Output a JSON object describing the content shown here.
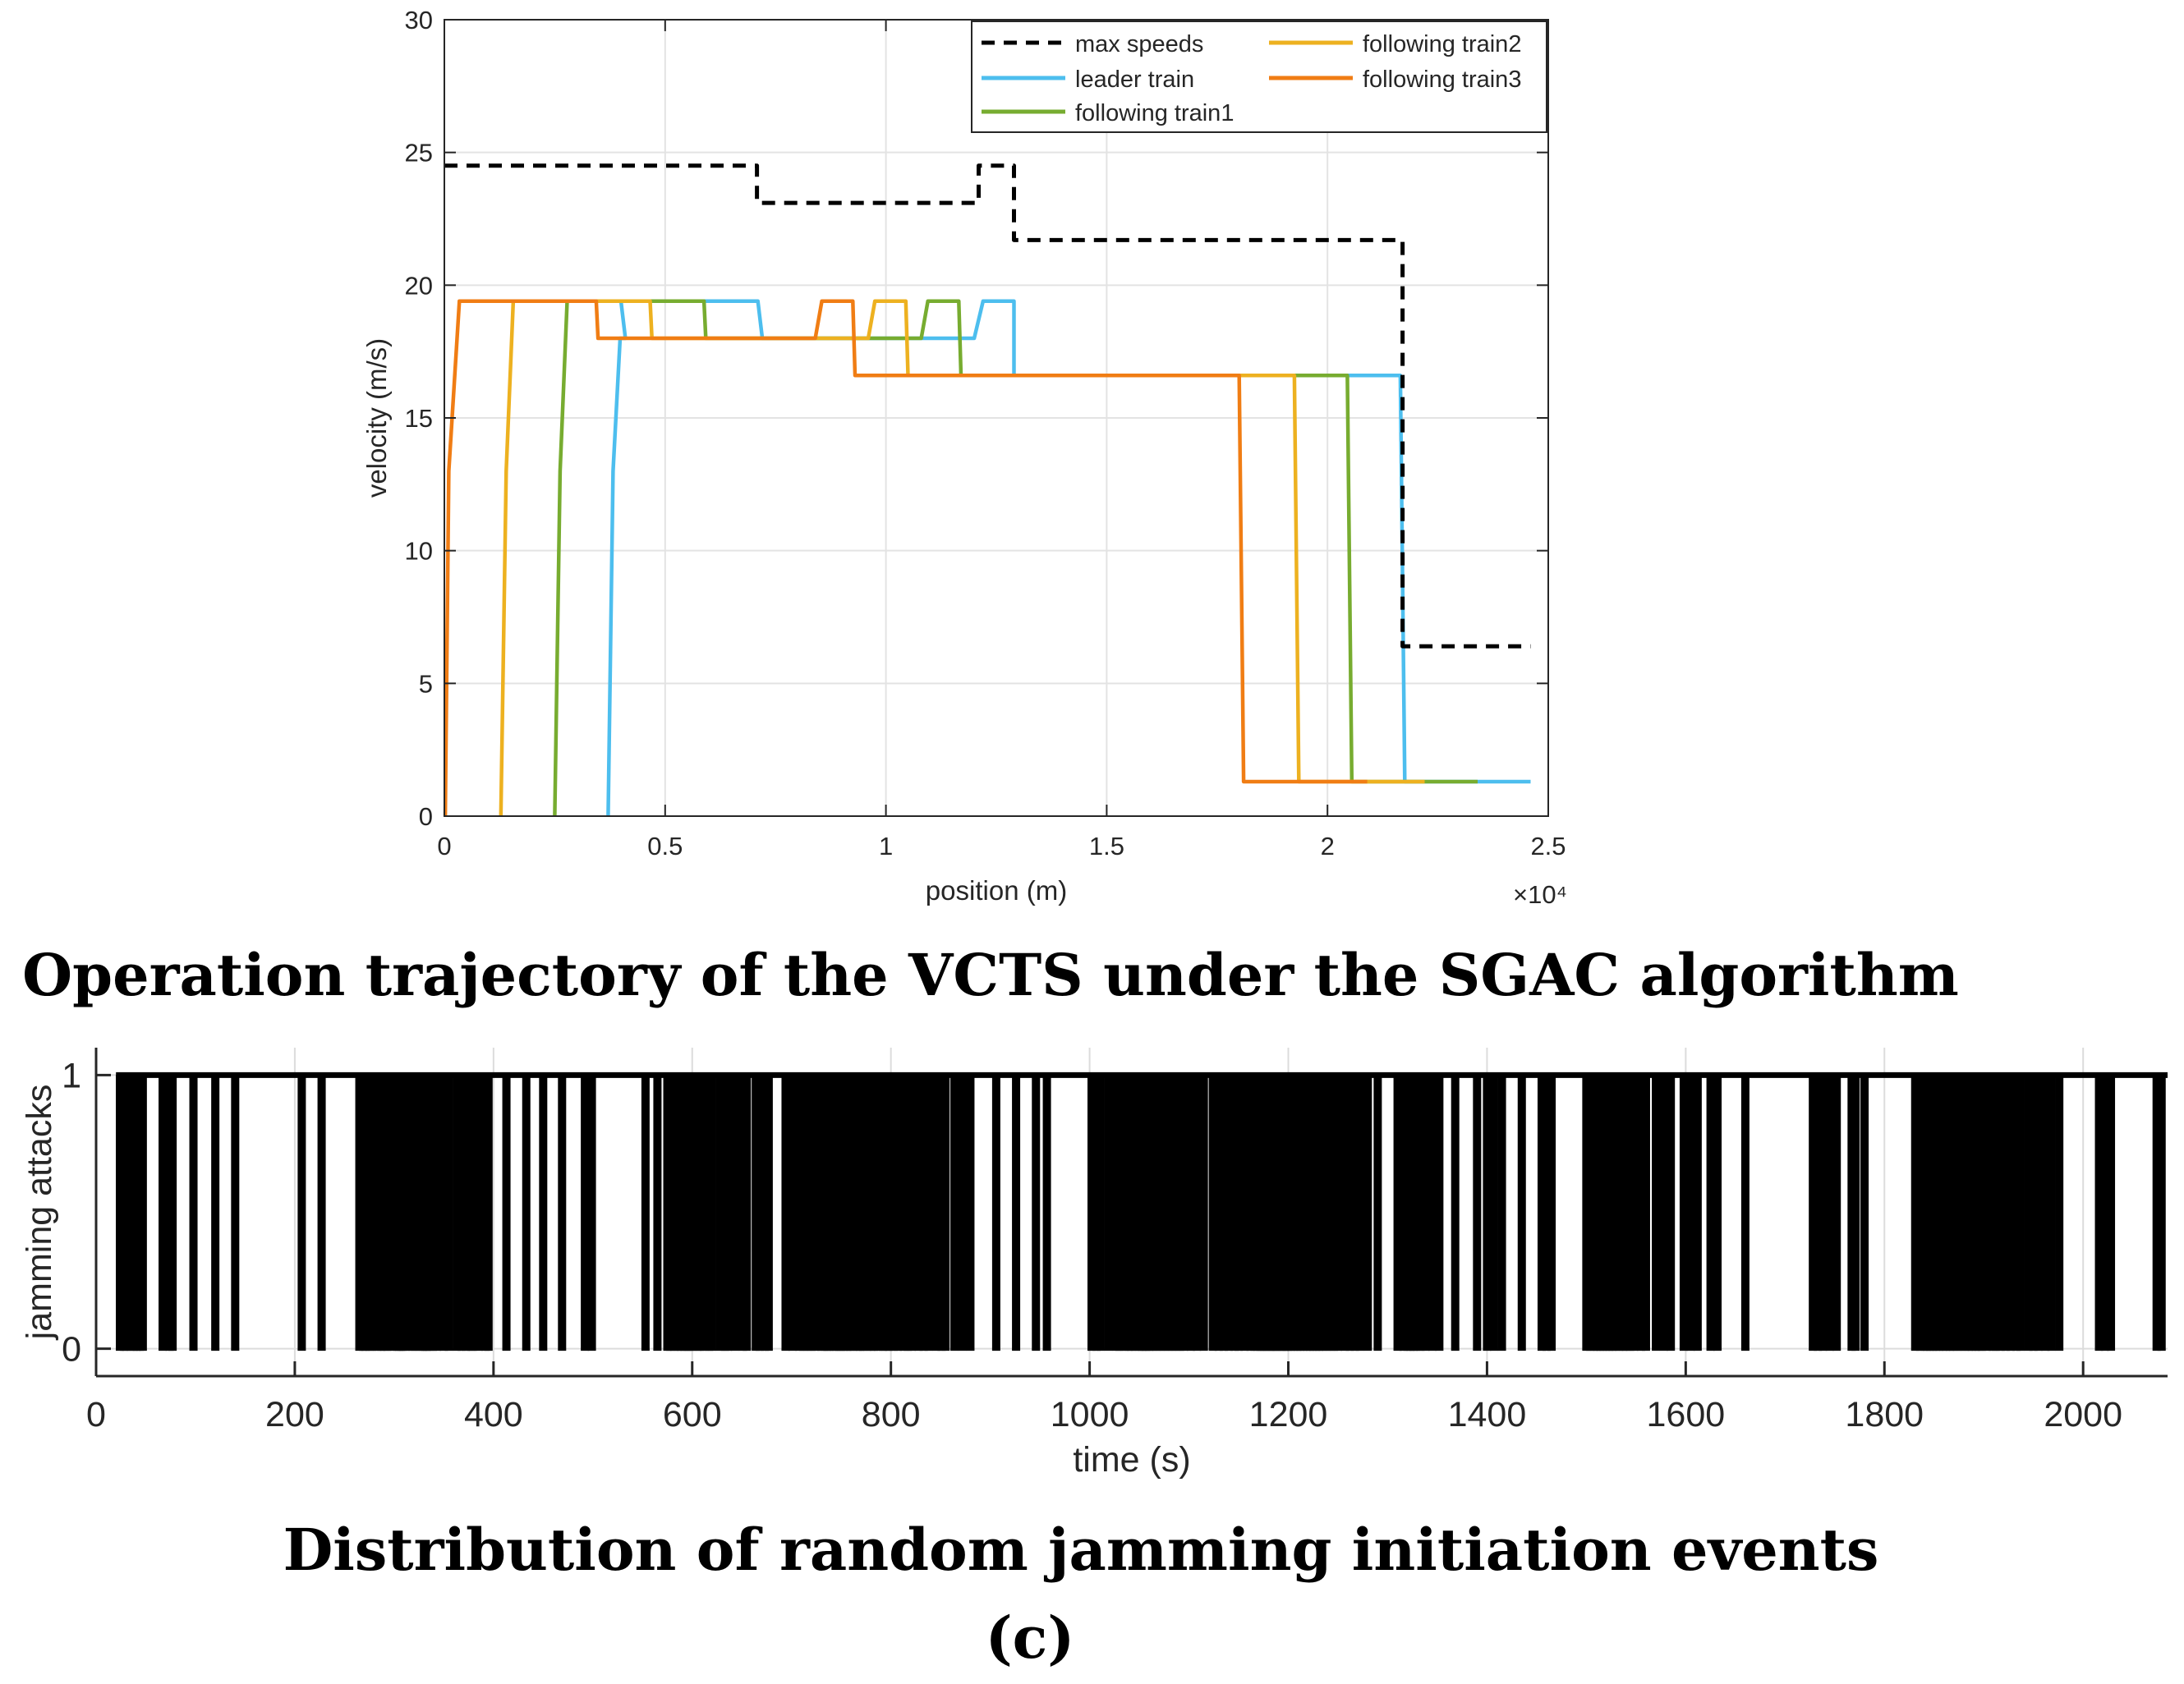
{
  "chart_data": [
    {
      "type": "line",
      "xlabel": "position (m)",
      "ylabel": "velocity (m/s)",
      "x_multiplier_label": "×10⁴",
      "xlim": [
        0,
        2.5
      ],
      "ylim": [
        0,
        30
      ],
      "xticks": [
        0,
        0.5,
        1,
        1.5,
        2,
        2.5
      ],
      "xtick_labels": [
        "0",
        "0.5",
        "1",
        "1.5",
        "2",
        "2.5"
      ],
      "yticks": [
        0,
        5,
        10,
        15,
        20,
        25,
        30
      ],
      "ytick_labels": [
        "0",
        "5",
        "10",
        "15",
        "20",
        "25",
        "30"
      ],
      "grid": true,
      "legend_position": "top-right",
      "series": [
        {
          "name": "max speeds",
          "color": "#000000",
          "dashed": true,
          "points": [
            [
              0,
              24.5
            ],
            [
              0.708,
              24.5
            ],
            [
              0.708,
              23.1
            ],
            [
              1.21,
              23.1
            ],
            [
              1.21,
              24.5
            ],
            [
              1.29,
              24.5
            ],
            [
              1.29,
              21.7
            ],
            [
              2.17,
              21.7
            ],
            [
              2.17,
              6.4
            ],
            [
              2.46,
              6.4
            ]
          ]
        },
        {
          "name": "leader train",
          "color": "#4DBEEE",
          "dashed": false,
          "points": [
            [
              0.371,
              0
            ],
            [
              0.382,
              13
            ],
            [
              0.398,
              18
            ],
            [
              0.41,
              18
            ],
            [
              0.4,
              19.4
            ],
            [
              0.71,
              19.4
            ],
            [
              0.72,
              18
            ],
            [
              1.2,
              18
            ],
            [
              1.22,
              19.4
            ],
            [
              1.29,
              19.4
            ],
            [
              1.29,
              16.6
            ],
            [
              2.165,
              16.6
            ],
            [
              2.175,
              1.3
            ],
            [
              2.46,
              1.3
            ]
          ]
        },
        {
          "name": "following train1",
          "color": "#77AC30",
          "dashed": false,
          "points": [
            [
              0.25,
              0
            ],
            [
              0.262,
              13
            ],
            [
              0.278,
              19.4
            ],
            [
              0.588,
              19.4
            ],
            [
              0.592,
              18
            ],
            [
              1.08,
              18
            ],
            [
              1.095,
              19.4
            ],
            [
              1.165,
              19.4
            ],
            [
              1.17,
              16.6
            ],
            [
              2.045,
              16.6
            ],
            [
              2.055,
              1.3
            ],
            [
              2.34,
              1.3
            ]
          ]
        },
        {
          "name": "following train2",
          "color": "#EDB120",
          "dashed": false,
          "points": [
            [
              0.128,
              0
            ],
            [
              0.14,
              13
            ],
            [
              0.156,
              19.4
            ],
            [
              0.466,
              19.4
            ],
            [
              0.47,
              18
            ],
            [
              0.96,
              18
            ],
            [
              0.975,
              19.4
            ],
            [
              1.045,
              19.4
            ],
            [
              1.05,
              16.6
            ],
            [
              1.925,
              16.6
            ],
            [
              1.935,
              1.3
            ],
            [
              2.22,
              1.3
            ]
          ]
        },
        {
          "name": "following train3",
          "color": "#F07D14",
          "dashed": false,
          "points": [
            [
              0.002,
              0
            ],
            [
              0.01,
              13
            ],
            [
              0.034,
              19.4
            ],
            [
              0.344,
              19.4
            ],
            [
              0.348,
              18
            ],
            [
              0.84,
              18
            ],
            [
              0.855,
              19.4
            ],
            [
              0.925,
              19.4
            ],
            [
              0.93,
              16.6
            ],
            [
              1.8,
              16.6
            ],
            [
              1.81,
              1.3
            ],
            [
              2.09,
              1.3
            ]
          ]
        }
      ]
    },
    {
      "type": "line",
      "xlabel": "time (s)",
      "ylabel": "jamming attacks",
      "xlim": [
        0,
        2085
      ],
      "ylim": [
        -0.1,
        1.1
      ],
      "xticks": [
        0,
        200,
        400,
        600,
        800,
        1000,
        1200,
        1400,
        1600,
        1800,
        2000
      ],
      "xtick_labels": [
        "0",
        "200",
        "400",
        "600",
        "800",
        "1000",
        "1200",
        "1400",
        "1600",
        "1800",
        "2000"
      ],
      "yticks": [
        0,
        1
      ],
      "ytick_labels": [
        "0",
        "1"
      ],
      "grid": true,
      "series": [
        {
          "name": "jamming attacks",
          "color": "#000000",
          "baseline": 1,
          "event_value": 0,
          "event_times": [
            24,
            28,
            30,
            35,
            38,
            41,
            44,
            47,
            67,
            74,
            77,
            98,
            120,
            140,
            207,
            227,
            265,
            269,
            271,
            275,
            278,
            283,
            287,
            290,
            293,
            298,
            303,
            305,
            307,
            309,
            312,
            318,
            321,
            326,
            329,
            331,
            333,
            335,
            339,
            343,
            350,
            355,
            363,
            368,
            372,
            377,
            379,
            385,
            392,
            395,
            413,
            433,
            450,
            469,
            492,
            499,
            553,
            565,
            575,
            578,
            582,
            586,
            589,
            592,
            595,
            597,
            600,
            605,
            608,
            612,
            617,
            620,
            628,
            633,
            636,
            643,
            651,
            655,
            664,
            668,
            673,
            677,
            694,
            701,
            708,
            712,
            716,
            720,
            724,
            730,
            733,
            736,
            738,
            742,
            745,
            748,
            750,
            753,
            756,
            759,
            762,
            767,
            769,
            772,
            776,
            780,
            783,
            787,
            792,
            795,
            798,
            803,
            807,
            813,
            817,
            821,
            828,
            833,
            838,
            846,
            851,
            855,
            864,
            872,
            880,
            906,
            926,
            946,
            957,
            1002,
            1007,
            1011,
            1019,
            1027,
            1030,
            1035,
            1039,
            1042,
            1046,
            1050,
            1053,
            1055,
            1057,
            1060,
            1063,
            1067,
            1071,
            1075,
            1079,
            1083,
            1087,
            1091,
            1095,
            1102,
            1108,
            1115,
            1124,
            1130,
            1135,
            1140,
            1146,
            1150,
            1156,
            1162,
            1166,
            1169,
            1172,
            1174,
            1176,
            1178,
            1181,
            1183,
            1185,
            1187,
            1189,
            1192,
            1194,
            1196,
            1198,
            1200,
            1203,
            1206,
            1209,
            1212,
            1215,
            1219,
            1222,
            1225,
            1228,
            1231,
            1234,
            1238,
            1242,
            1246,
            1250,
            1257,
            1262,
            1267,
            1272,
            1280,
            1290,
            1310,
            1316,
            1320,
            1323,
            1326,
            1329,
            1333,
            1338,
            1345,
            1352,
            1368,
            1390,
            1400,
            1407,
            1415,
            1435,
            1455,
            1460,
            1465,
            1500,
            1504,
            1508,
            1511,
            1514,
            1517,
            1520,
            1523,
            1526,
            1529,
            1533,
            1537,
            1540,
            1544,
            1548,
            1555,
            1560,
            1570,
            1578,
            1585,
            1598,
            1605,
            1612,
            1625,
            1632,
            1660,
            1728,
            1733,
            1738,
            1745,
            1752,
            1767,
            1771,
            1780,
            1831,
            1836,
            1840,
            1843,
            1846,
            1849,
            1852,
            1855,
            1859,
            1862,
            1866,
            1869,
            1873,
            1877,
            1881,
            1885,
            1888,
            1892,
            1895,
            1898,
            1903,
            1909,
            1912,
            1917,
            1922,
            1927,
            1933,
            1937,
            1945,
            1950,
            1955,
            1962,
            1968,
            1976,
            2016,
            2022,
            2028,
            2074,
            2079
          ]
        }
      ]
    }
  ],
  "legend_entries": [
    "max speeds",
    "leader train",
    "following train1",
    "following train2",
    "following train3"
  ],
  "captions": {
    "top": "Operation trajectory of the VCTS under the SGAC algorithm",
    "bottom": "Distribution of random jamming initiation events",
    "label": "(c)"
  }
}
